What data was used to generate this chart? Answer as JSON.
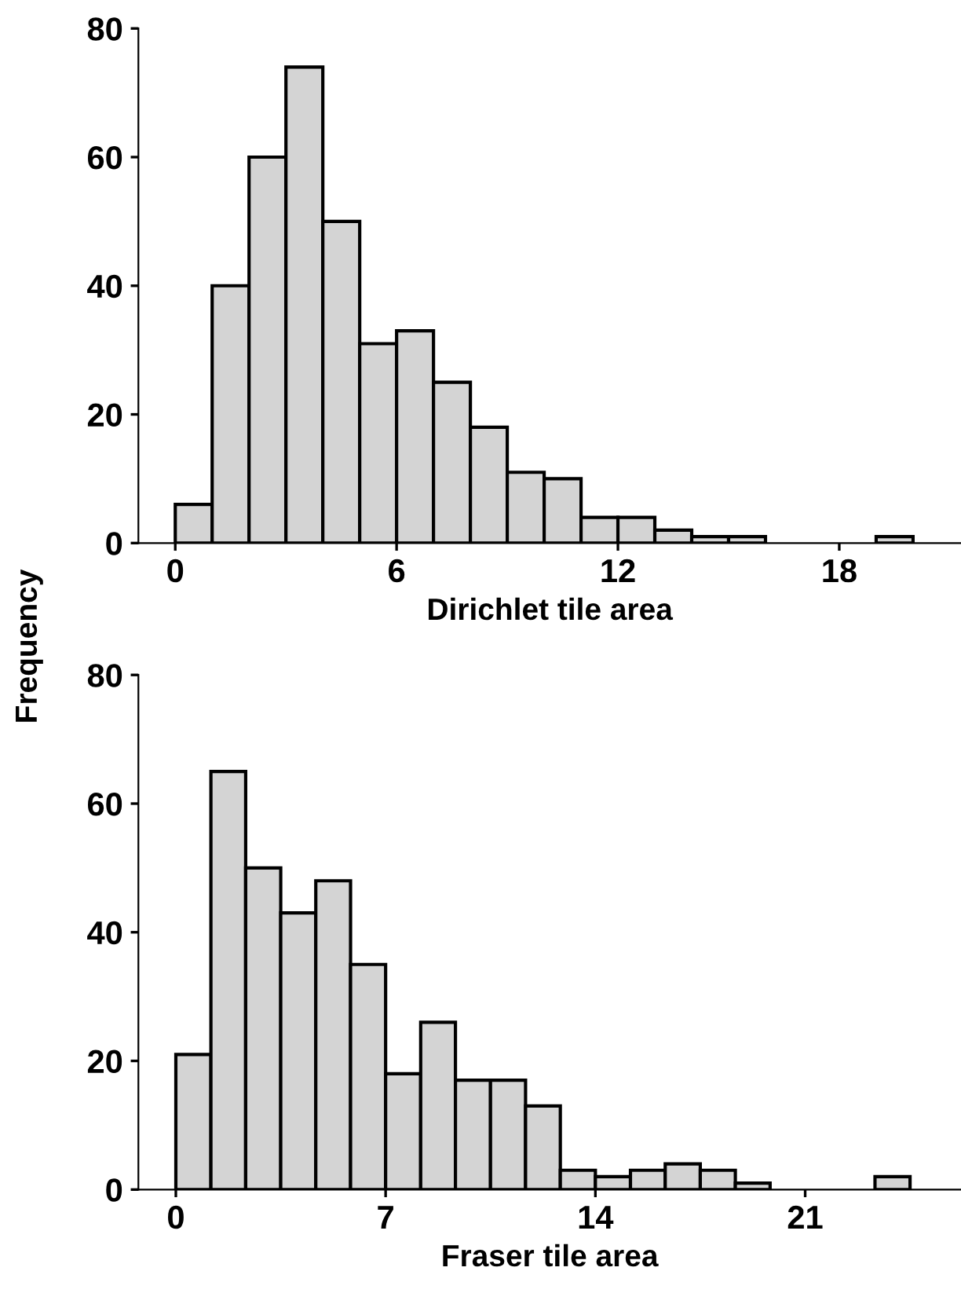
{
  "chart_data": [
    {
      "type": "histogram",
      "xlabel": "Dirichlet tile area",
      "ylabel": "Frequency",
      "color": "#d4d4d4",
      "bins": [
        0,
        1,
        2,
        3,
        4,
        5,
        6,
        7,
        8,
        9,
        10,
        11,
        12,
        13,
        14,
        15,
        16,
        17,
        18,
        19,
        20
      ],
      "values": [
        6,
        40,
        60,
        74,
        50,
        31,
        33,
        25,
        18,
        11,
        10,
        4,
        4,
        2,
        1,
        1,
        0,
        0,
        0,
        1
      ],
      "xlim": [
        -1,
        21.3
      ],
      "ylim": [
        0,
        80
      ],
      "xticks": [
        0,
        6,
        12,
        18
      ],
      "yticks": [
        0,
        20,
        40,
        60,
        80
      ],
      "grid": false
    },
    {
      "type": "histogram",
      "xlabel": "Fraser tile area",
      "color": "#d4d4d4",
      "bins": [
        0,
        1.17,
        2.33,
        3.5,
        4.67,
        5.83,
        7,
        8.17,
        9.33,
        10.5,
        11.67,
        12.83,
        14,
        15.17,
        16.33,
        17.5,
        18.67,
        19.83,
        21,
        22.17,
        23.33,
        24.5
      ],
      "values": [
        21,
        65,
        50,
        43,
        48,
        35,
        18,
        26,
        17,
        17,
        13,
        3,
        2,
        3,
        4,
        3,
        1,
        0,
        0,
        0,
        2
      ],
      "xlim": [
        -1.25,
        26.2
      ],
      "ylim": [
        0,
        80
      ],
      "xticks": [
        0,
        7,
        14,
        21
      ],
      "yticks": [
        0,
        20,
        40,
        60,
        80
      ],
      "grid": false
    }
  ]
}
